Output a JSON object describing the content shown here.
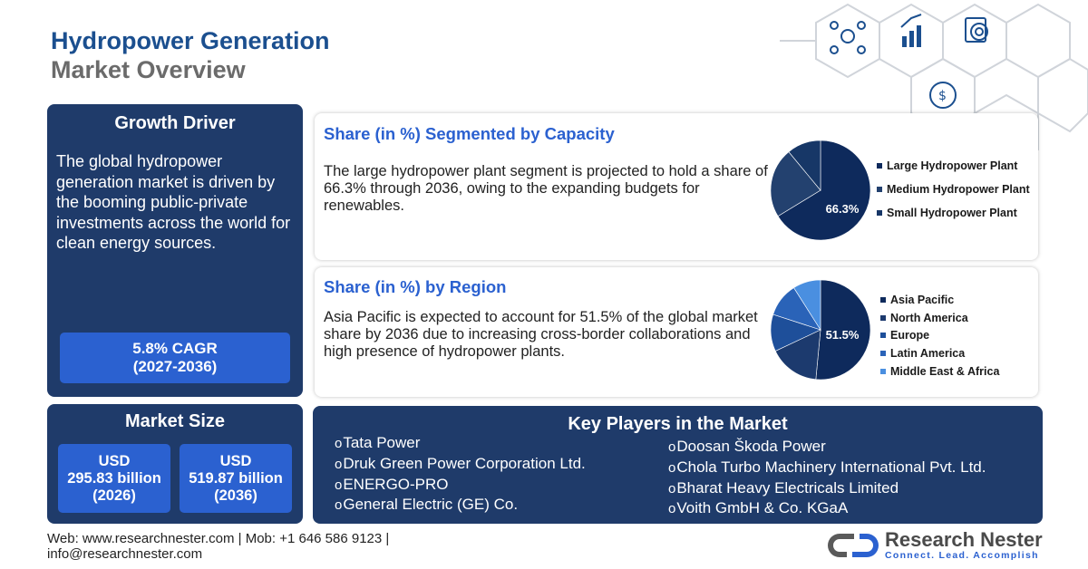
{
  "header": {
    "title_line1": "Hydropower Generation",
    "title_line2": "Market Overview"
  },
  "growth_driver": {
    "title": "Growth Driver",
    "text": "The global hydropower generation market is driven by the booming public-private investments across the world for clean energy sources.",
    "cagr_line1": "5.8% CAGR",
    "cagr_line2": "(2027-2036)"
  },
  "market_size": {
    "title": "Market Size",
    "box1": {
      "line1": "USD",
      "line2": "295.83 billion",
      "line3": "(2026)"
    },
    "box2": {
      "line1": "USD",
      "line2": "519.87 billion",
      "line3": "(2036)"
    }
  },
  "capacity": {
    "title": "Share (in %) Segmented by Capacity",
    "text": "The large hydropower plant segment is projected to hold a share of 66.3% through 2036, owing to the expanding budgets for renewables.",
    "pie_label": "66.3%"
  },
  "region": {
    "title": "Share (in %) by Region",
    "text": "Asia Pacific is expected to account for 51.5% of the global market share by 2036 due to increasing cross-border collaborations and high presence of hydropower plants.",
    "pie_label": "51.5%"
  },
  "chart_data": [
    {
      "type": "pie",
      "categories": [
        "Large Hydropower Plant",
        "Medium Hydropower Plant",
        "Small Hydropower Plant"
      ],
      "values": [
        66.3,
        22.7,
        11.0
      ],
      "colors": [
        "#0e2a5c",
        "#23416f",
        "#173767"
      ],
      "legend": "right"
    },
    {
      "type": "pie",
      "categories": [
        "Asia Pacific",
        "North America",
        "Europe",
        "Latin America",
        "Middle East & Africa"
      ],
      "values": [
        51.5,
        16.5,
        12.0,
        11.0,
        9.0
      ],
      "colors": [
        "#0e2a5c",
        "#1c3a6e",
        "#1e4f9a",
        "#2a63b8",
        "#4a8fe0"
      ],
      "legend": "right"
    }
  ],
  "key_players": {
    "title": "Key Players in the Market",
    "col1": [
      "Tata Power",
      "Druk Green Power Corporation Ltd.",
      "ENERGO-PRO",
      "General Electric (GE) Co."
    ],
    "col2": [
      "Doosan Škoda Power",
      "Chola Turbo Machinery International Pvt. Ltd.",
      "Bharat Heavy Electricals Limited",
      "Voith GmbH & Co. KGaA"
    ]
  },
  "footer": {
    "line1": "Web: www.researchnester.com | Mob: +1 646 586 9123 |",
    "line2": "info@researchnester.com"
  },
  "logo": {
    "name": "Research Nester",
    "tagline": "Connect. Lead. Accomplish"
  },
  "icons": [
    "network-people-icon",
    "bar-chart-icon",
    "money-cycle-icon",
    "target-clipboard-icon"
  ]
}
